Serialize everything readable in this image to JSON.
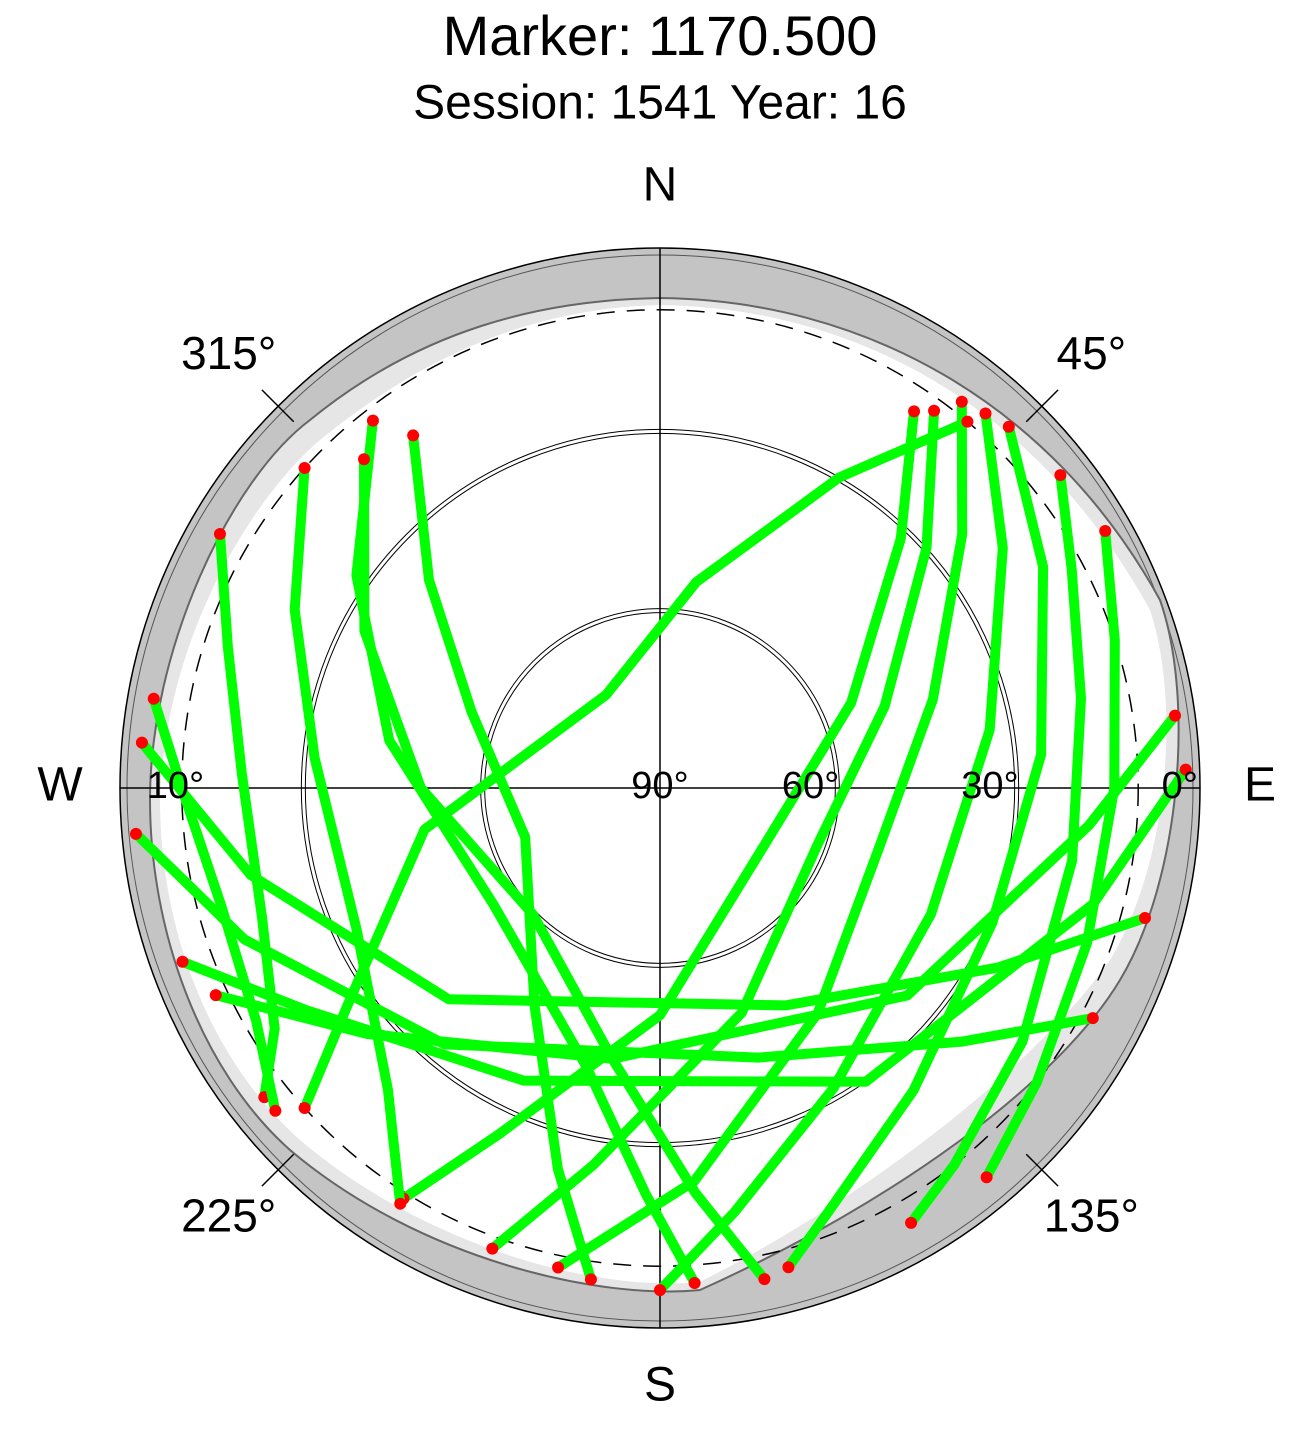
{
  "chart_data": {
    "type": "polar",
    "title": "Marker: 1170.500",
    "subtitle": "Session: 1541 Year: 16",
    "directions": [
      {
        "value": 0,
        "label": "N"
      },
      {
        "value": 90,
        "label": "E"
      },
      {
        "value": 180,
        "label": "S"
      },
      {
        "value": 270,
        "label": "W"
      }
    ],
    "azimuth_ticks": [
      {
        "value": 45,
        "label": "45°"
      },
      {
        "value": 135,
        "label": "135°"
      },
      {
        "value": 225,
        "label": "225°"
      },
      {
        "value": 315,
        "label": "315°"
      }
    ],
    "elevation_ticks": [
      {
        "value": 0,
        "label": "0°"
      },
      {
        "value": 30,
        "label": "30°"
      },
      {
        "value": 60,
        "label": "60°"
      },
      {
        "value": 90,
        "label": "90°"
      }
    ],
    "mask_elevation": {
      "value": 10,
      "label": "10°"
    },
    "elevation_lim": [
      0,
      90
    ],
    "track_color": "#00ff00",
    "endpoint_color": "#ff0000",
    "series": [
      {
        "azimuth": [
          38,
          50,
          72,
          105,
          145,
          175,
          192
        ],
        "elevation": [
          8,
          24,
          42,
          52,
          44,
          24,
          8
        ]
      },
      {
        "azimuth": [
          41,
          55,
          80,
          115,
          150,
          170,
          180
        ],
        "elevation": [
          7,
          20,
          34,
          40,
          32,
          18,
          6
        ]
      },
      {
        "azimuth": [
          44,
          60,
          85,
          112,
          140,
          158,
          165
        ],
        "elevation": [
          6,
          16,
          26,
          30,
          24,
          14,
          7
        ]
      },
      {
        "azimuth": [
          36,
          48,
          70,
          110,
          160,
          190,
          200
        ],
        "elevation": [
          12,
          30,
          50,
          62,
          50,
          26,
          8
        ]
      },
      {
        "azimuth": [
          52,
          62,
          78,
          100,
          125,
          142,
          150
        ],
        "elevation": [
          5,
          12,
          18,
          20,
          16,
          10,
          6
        ]
      },
      {
        "azimuth": [
          34,
          44,
          66,
          115,
          180,
          205,
          212
        ],
        "elevation": [
          14,
          32,
          55,
          70,
          52,
          26,
          9
        ]
      },
      {
        "azimuth": [
          60,
          72,
          90,
          110,
          128,
          140
        ],
        "elevation": [
          4,
          10,
          14,
          14,
          10,
          5
        ]
      },
      {
        "azimuth": [
          40,
          30,
          10,
          330,
          260,
          235,
          228
        ],
        "elevation": [
          10,
          30,
          55,
          72,
          50,
          26,
          10
        ]
      },
      {
        "azimuth": [
          322,
          305,
          280,
          235,
          195,
          182,
          176
        ],
        "elevation": [
          12,
          28,
          44,
          56,
          42,
          22,
          7
        ]
      },
      {
        "azimuth": [
          318,
          298,
          270,
          225,
          190,
          175,
          168
        ],
        "elevation": [
          16,
          34,
          50,
          60,
          44,
          22,
          6
        ]
      },
      {
        "azimuth": [
          325,
          312,
          292,
          250,
          210,
          195,
          188
        ],
        "elevation": [
          18,
          38,
          56,
          66,
          48,
          24,
          7
        ]
      },
      {
        "azimuth": [
          312,
          296,
          275,
          245,
          222,
          212
        ],
        "elevation": [
          10,
          22,
          32,
          34,
          22,
          8
        ]
      },
      {
        "azimuth": [
          300,
          288,
          272,
          252,
          238,
          232
        ],
        "elevation": [
          5,
          14,
          20,
          20,
          14,
          6
        ]
      },
      {
        "azimuth": [
          280,
          270,
          255,
          240,
          230
        ],
        "elevation": [
          4,
          10,
          14,
          12,
          6
        ]
      },
      {
        "azimuth": [
          265,
          250,
          220,
          160,
          130,
          118
        ],
        "elevation": [
          2,
          16,
          34,
          42,
          24,
          8
        ]
      },
      {
        "azimuth": [
          275,
          258,
          225,
          150,
          118,
          105
        ],
        "elevation": [
          3,
          20,
          40,
          48,
          26,
          6
        ]
      },
      {
        "azimuth": [
          82,
          95,
          130,
          190,
          230,
          245
        ],
        "elevation": [
          3,
          18,
          36,
          44,
          26,
          8
        ]
      },
      {
        "azimuth": [
          88,
          105,
          145,
          205,
          238,
          250
        ],
        "elevation": [
          2,
          15,
          30,
          36,
          20,
          5
        ]
      }
    ]
  }
}
